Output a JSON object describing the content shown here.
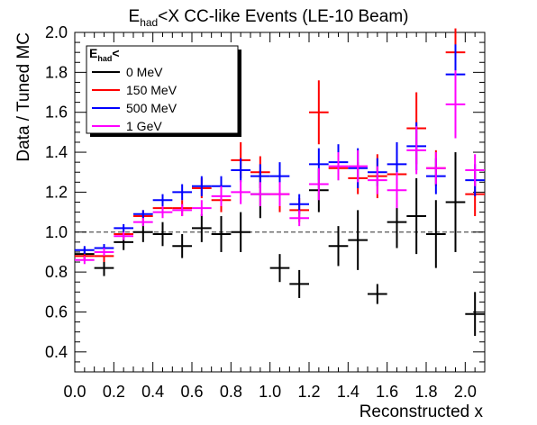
{
  "chart_data": {
    "type": "scatter",
    "title_main": "E",
    "title_sub": "had",
    "title_rest": "<X CC-like Events (LE-10 Beam)",
    "xlabel": "Reconstructed x",
    "ylabel": "Data / Tuned MC",
    "xlim": [
      0.0,
      2.1
    ],
    "ylim": [
      0.3,
      2.0
    ],
    "x_ticks": [
      "0.0",
      "0.2",
      "0.4",
      "0.6",
      "0.8",
      "1.0",
      "1.2",
      "1.4",
      "1.6",
      "1.8",
      "2.0"
    ],
    "y_ticks": [
      "0.4",
      "0.6",
      "0.8",
      "1.0",
      "1.2",
      "1.4",
      "1.6",
      "1.8",
      "2.0"
    ],
    "reference_line": 1.0,
    "legend": {
      "header_main": "E",
      "header_sub": "had",
      "header_rest": "<",
      "placement": "top-left"
    },
    "bin_width": 0.1,
    "series": [
      {
        "name": "0 MeV",
        "color": "#000000",
        "x": [
          0.05,
          0.15,
          0.25,
          0.35,
          0.45,
          0.55,
          0.65,
          0.75,
          0.85,
          0.95,
          1.05,
          1.15,
          1.25,
          1.35,
          1.45,
          1.55,
          1.65,
          1.75,
          1.85,
          1.95,
          2.05
        ],
        "y": [
          0.89,
          0.82,
          0.95,
          1.0,
          0.99,
          0.93,
          1.02,
          0.99,
          1.0,
          1.19,
          0.82,
          0.74,
          1.21,
          0.93,
          0.96,
          0.69,
          1.05,
          1.08,
          0.99,
          1.15,
          0.59
        ],
        "err": [
          0.03,
          0.04,
          0.04,
          0.05,
          0.06,
          0.06,
          0.07,
          0.09,
          0.1,
          0.12,
          0.07,
          0.07,
          0.11,
          0.1,
          0.15,
          0.05,
          0.13,
          0.19,
          0.17,
          0.25,
          0.11
        ]
      },
      {
        "name": "150 MeV",
        "color": "#ff0000",
        "x": [
          0.05,
          0.15,
          0.25,
          0.35,
          0.45,
          0.55,
          0.65,
          0.75,
          0.85,
          0.95,
          1.05,
          1.15,
          1.25,
          1.35,
          1.45,
          1.55,
          1.65,
          1.75,
          1.85,
          1.95,
          2.05
        ],
        "y": [
          0.88,
          0.88,
          0.99,
          1.08,
          1.12,
          1.12,
          1.22,
          1.16,
          1.36,
          1.3,
          1.19,
          1.11,
          1.6,
          1.32,
          1.27,
          1.28,
          1.29,
          1.52,
          1.32,
          1.9,
          1.19
        ],
        "err": [
          0.02,
          0.03,
          0.02,
          0.03,
          0.03,
          0.04,
          0.05,
          0.06,
          0.09,
          0.08,
          0.09,
          0.06,
          0.16,
          0.06,
          0.08,
          0.11,
          0.13,
          0.18,
          0.09,
          0.12,
          0.11
        ]
      },
      {
        "name": "500 MeV",
        "color": "#0000ff",
        "x": [
          0.05,
          0.15,
          0.25,
          0.35,
          0.45,
          0.55,
          0.65,
          0.75,
          0.85,
          0.95,
          1.05,
          1.15,
          1.25,
          1.35,
          1.45,
          1.55,
          1.65,
          1.75,
          1.85,
          1.95,
          2.05
        ],
        "y": [
          0.91,
          0.92,
          1.02,
          1.09,
          1.16,
          1.2,
          1.23,
          1.23,
          1.31,
          1.28,
          1.28,
          1.14,
          1.34,
          1.35,
          1.32,
          1.3,
          1.34,
          1.43,
          1.28,
          1.79,
          1.26
        ],
        "err": [
          0.02,
          0.02,
          0.02,
          0.02,
          0.03,
          0.04,
          0.05,
          0.05,
          0.06,
          0.06,
          0.07,
          0.05,
          0.08,
          0.09,
          0.1,
          0.07,
          0.11,
          0.12,
          0.09,
          0.15,
          0.08
        ]
      },
      {
        "name": "1 GeV",
        "color": "#ff00ff",
        "x": [
          0.05,
          0.15,
          0.25,
          0.35,
          0.45,
          0.55,
          0.65,
          0.75,
          0.85,
          0.95,
          1.05,
          1.15,
          1.25,
          1.35,
          1.45,
          1.55,
          1.65,
          1.75,
          1.85,
          1.95,
          2.05
        ],
        "y": [
          0.86,
          0.9,
          0.98,
          1.05,
          1.1,
          1.11,
          1.12,
          1.18,
          1.2,
          1.19,
          1.19,
          1.07,
          1.24,
          1.33,
          1.33,
          1.26,
          1.21,
          1.41,
          1.32,
          1.64,
          1.31
        ],
        "err": [
          0.02,
          0.02,
          0.02,
          0.02,
          0.03,
          0.03,
          0.04,
          0.05,
          0.06,
          0.06,
          0.06,
          0.04,
          0.08,
          0.07,
          0.08,
          0.07,
          0.09,
          0.12,
          0.08,
          0.17,
          0.08
        ]
      }
    ]
  }
}
